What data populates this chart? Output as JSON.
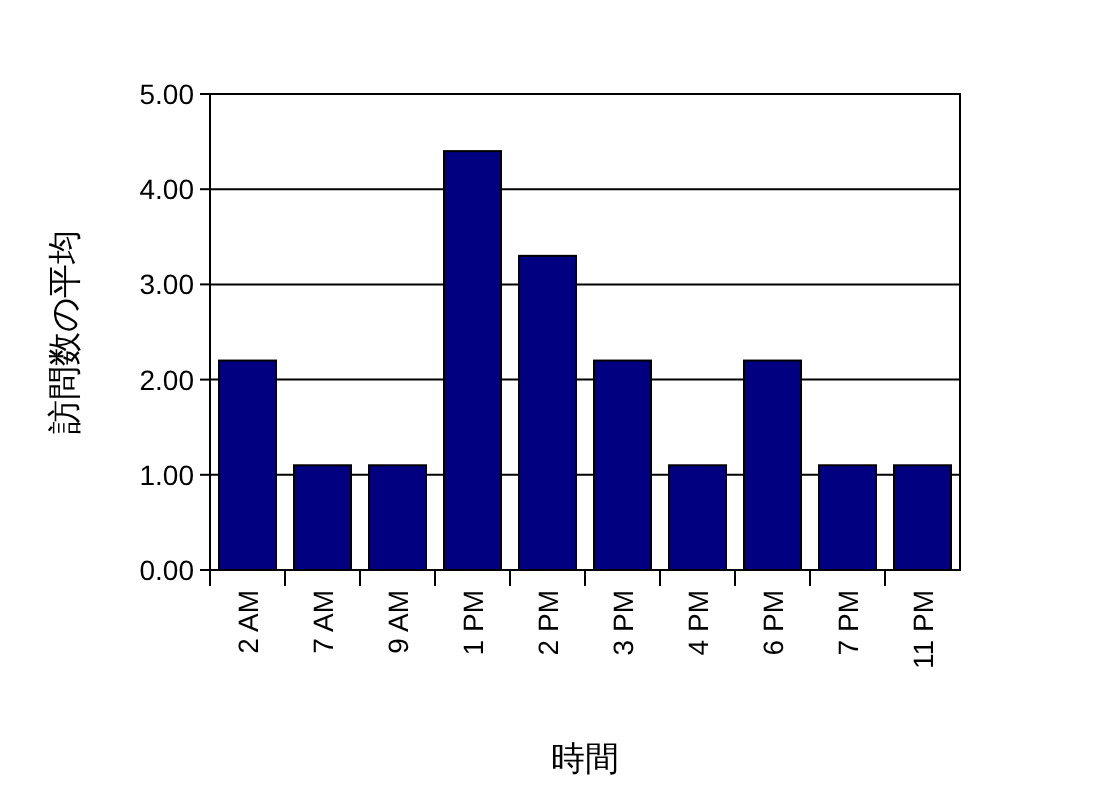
{
  "chart_data": {
    "type": "bar",
    "xlabel": "時間",
    "ylabel": "訪問数の平均",
    "categories": [
      "2 AM",
      "7 AM",
      "9 AM",
      "1 PM",
      "2 PM",
      "3 PM",
      "4 PM",
      "6 PM",
      "7 PM",
      "11 PM"
    ],
    "values": [
      2.2,
      1.1,
      1.1,
      4.4,
      3.3,
      2.2,
      1.1,
      2.2,
      1.1,
      1.1
    ],
    "color": "#000080",
    "ylim": [
      0,
      5
    ],
    "yticks": [
      {
        "value": 0,
        "label": "0.00"
      },
      {
        "value": 1,
        "label": "1.00"
      },
      {
        "value": 2,
        "label": "2.00"
      },
      {
        "value": 3,
        "label": "3.00"
      },
      {
        "value": 4,
        "label": "4.00"
      },
      {
        "value": 5,
        "label": "5.00"
      }
    ],
    "grid": "y"
  }
}
